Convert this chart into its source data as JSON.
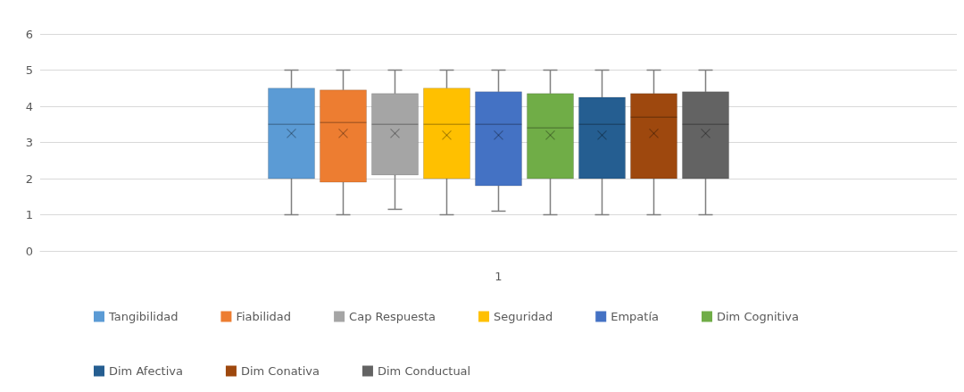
{
  "chart_data": {
    "type": "box",
    "categories": [
      "1"
    ],
    "ylim": [
      0,
      6
    ],
    "yticks": [
      0,
      1,
      2,
      3,
      4,
      5,
      6
    ],
    "grid": "y",
    "legend": "bottom",
    "series": [
      {
        "name": "Tangibilidad",
        "color": "#5b9bd5",
        "boxes": [
          {
            "low": 1,
            "q1": 2,
            "median": 3.5,
            "q3": 4.5,
            "high": 5,
            "mean": 3.25
          }
        ]
      },
      {
        "name": "Fiabilidad",
        "color": "#ed7d31",
        "boxes": [
          {
            "low": 1,
            "q1": 1.9,
            "median": 3.55,
            "q3": 4.45,
            "high": 5,
            "mean": 3.25
          }
        ]
      },
      {
        "name": "Cap Respuesta",
        "color": "#a5a5a5",
        "boxes": [
          {
            "low": 1.15,
            "q1": 2.1,
            "median": 3.5,
            "q3": 4.35,
            "high": 5,
            "mean": 3.25
          }
        ]
      },
      {
        "name": "Seguridad",
        "color": "#ffc000",
        "boxes": [
          {
            "low": 1,
            "q1": 2,
            "median": 3.5,
            "q3": 4.5,
            "high": 5,
            "mean": 3.2
          }
        ]
      },
      {
        "name": "Empatía",
        "color": "#4472c4",
        "boxes": [
          {
            "low": 1.1,
            "q1": 1.8,
            "median": 3.5,
            "q3": 4.4,
            "high": 5,
            "mean": 3.2
          }
        ]
      },
      {
        "name": "Dim Cognitiva",
        "color": "#70ad47",
        "boxes": [
          {
            "low": 1,
            "q1": 2,
            "median": 3.4,
            "q3": 4.35,
            "high": 5,
            "mean": 3.2
          }
        ]
      },
      {
        "name": "Dim Afectiva",
        "color": "#255e91",
        "boxes": [
          {
            "low": 1,
            "q1": 2,
            "median": 3.5,
            "q3": 4.25,
            "high": 5,
            "mean": 3.2
          }
        ]
      },
      {
        "name": "Dim Conativa",
        "color": "#9e480e",
        "boxes": [
          {
            "low": 1,
            "q1": 2,
            "median": 3.7,
            "q3": 4.35,
            "high": 5,
            "mean": 3.25
          }
        ]
      },
      {
        "name": "Dim Conductual",
        "color": "#636363",
        "boxes": [
          {
            "low": 1,
            "q1": 2,
            "median": 3.5,
            "q3": 4.4,
            "high": 5,
            "mean": 3.25
          }
        ]
      }
    ]
  }
}
